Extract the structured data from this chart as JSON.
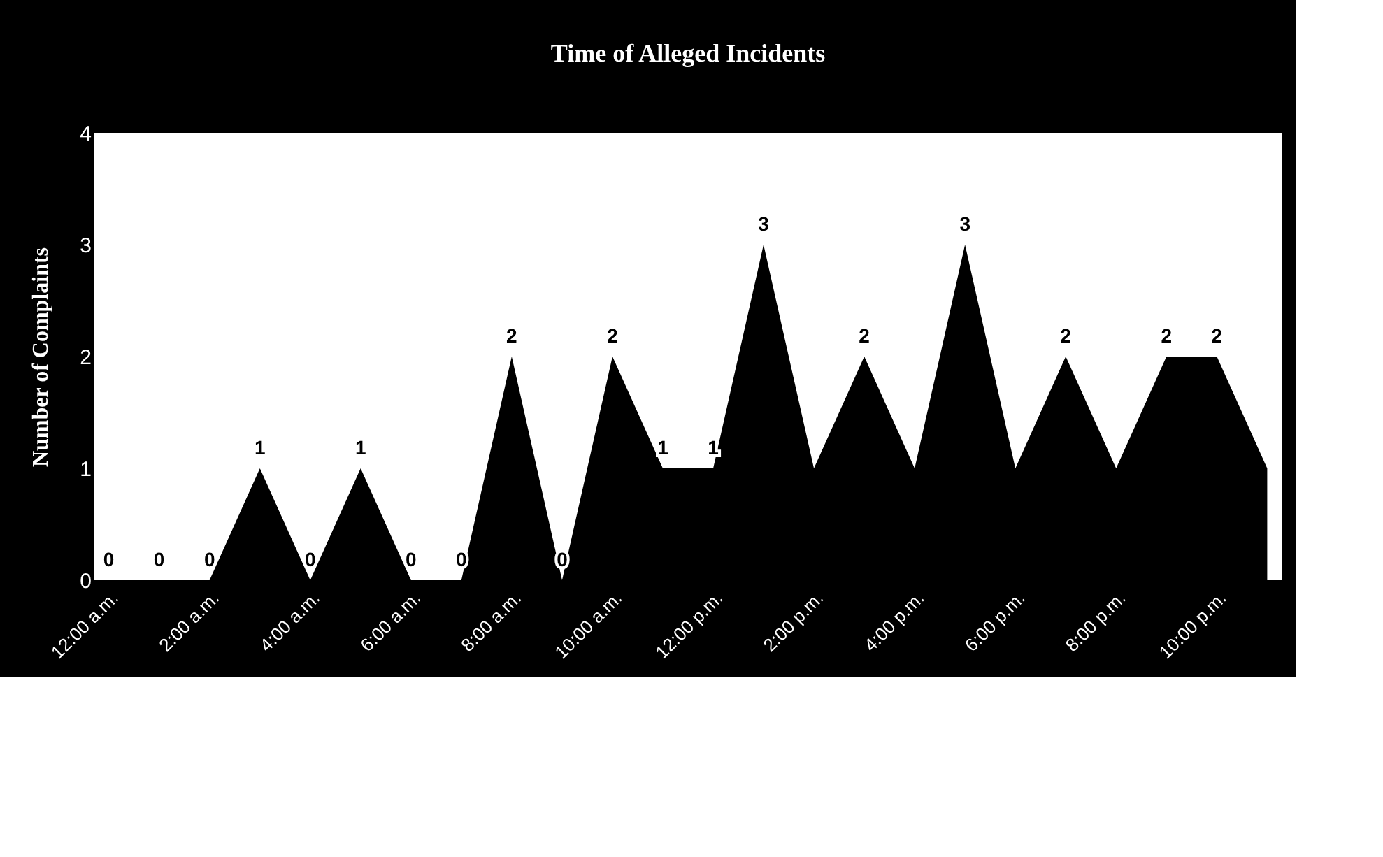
{
  "chart_data": {
    "type": "area",
    "title": "Time of Alleged Incidents",
    "ylabel": "Number of Complaints",
    "categories": [
      "12:00 a.m.",
      null,
      "2:00 a.m.",
      null,
      "4:00 a.m.",
      null,
      "6:00 a.m.",
      null,
      "8:00 a.m.",
      null,
      "10:00 a.m.",
      null,
      "12:00 p.m.",
      null,
      "2:00 p.m.",
      null,
      "4:00 p.m.",
      null,
      "6:00 p.m.",
      null,
      "8:00 p.m.",
      null,
      "10:00 p.m.",
      null
    ],
    "values": [
      0,
      0,
      0,
      1,
      0,
      1,
      0,
      0,
      2,
      0,
      2,
      1,
      1,
      3,
      1,
      2,
      1,
      3,
      1,
      2,
      1,
      2,
      2,
      1
    ],
    "value_labels": [
      "0",
      "0",
      "0",
      "1",
      "0",
      "1",
      "0",
      "0",
      "2",
      "0",
      "2",
      "1",
      "1",
      "3",
      null,
      "2",
      null,
      "3",
      null,
      "2",
      null,
      "2",
      "2",
      null
    ],
    "color": "#000000",
    "ylim": [
      0,
      4
    ],
    "yticks": [
      0,
      1,
      2,
      3,
      4
    ],
    "grid": false
  }
}
